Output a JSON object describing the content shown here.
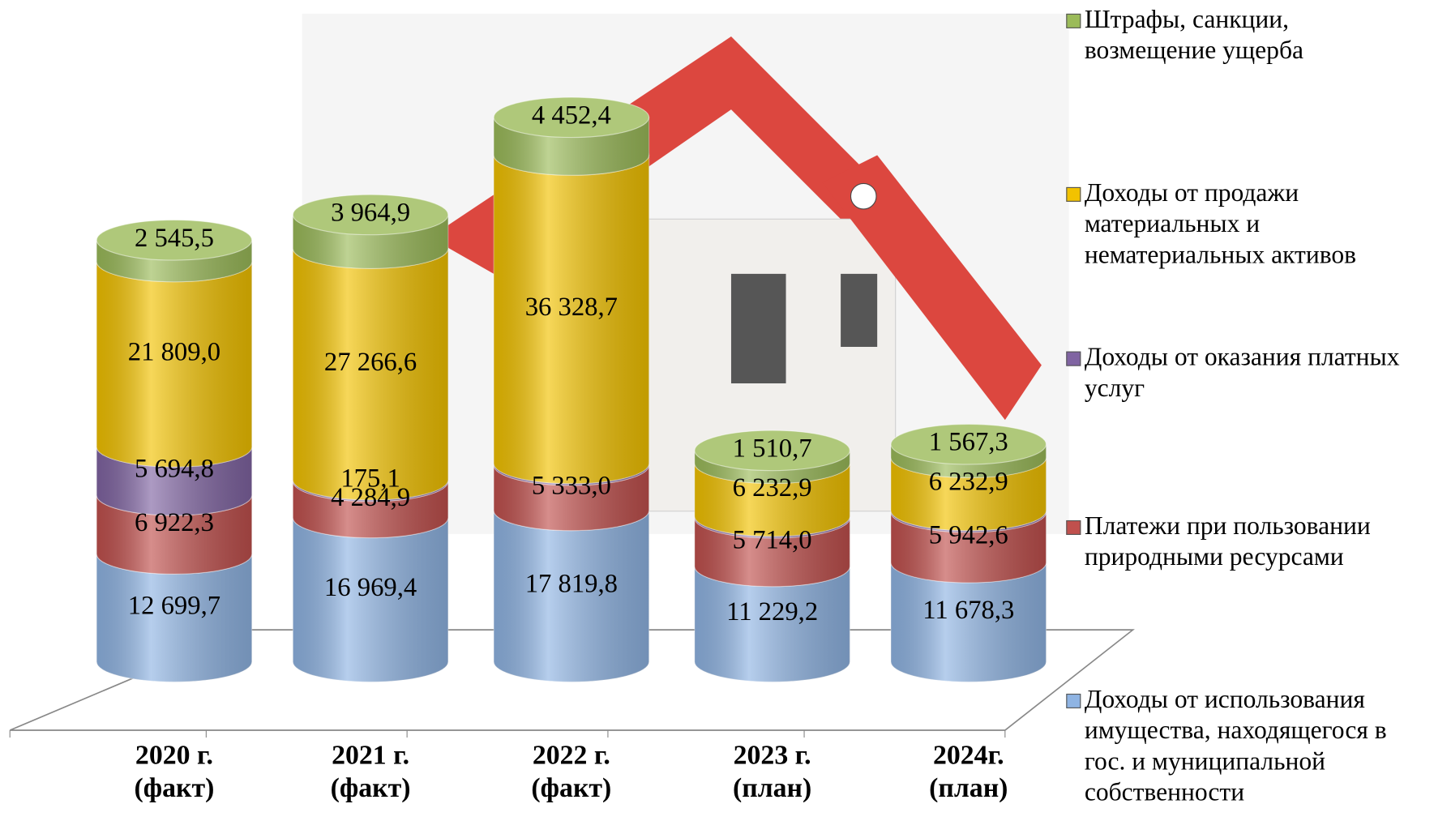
{
  "chart_data": {
    "type": "bar3d-stacked",
    "categories": [
      "2020 г. (факт)",
      "2021 г. (факт)",
      "2022 г. (факт)",
      "2023 г. (план)",
      "2024г. (план)"
    ],
    "series": [
      {
        "name": "Доходы от использования имущества, находящегося в гос. и муниципальной собственности",
        "color": "#8fb4e3",
        "values": [
          12699.7,
          16969.4,
          17819.8,
          11229.2,
          11678.3
        ],
        "value_labels": [
          "12 699,7",
          "16 969,4",
          "17 819,8",
          "11 229,2",
          "11 678,3"
        ]
      },
      {
        "name": "Платежи при пользовании природными ресурсами",
        "color": "#c0504d",
        "values": [
          6922.3,
          4284.9,
          5333.0,
          5714.0,
          5942.6
        ],
        "value_labels": [
          "6 922,3",
          "4 284,9",
          "5 333,0",
          "5 714,0",
          "5 942,6"
        ]
      },
      {
        "name": "Доходы от оказания платных услуг",
        "color": "#8064a2",
        "values": [
          5694.8,
          175.1,
          200,
          200,
          200
        ],
        "value_labels": [
          "5 694,8",
          "175,1",
          null,
          null,
          null
        ]
      },
      {
        "name": "Доходы от продажи материальных и нематериальных активов",
        "color": "#f2c200",
        "values": [
          21809.0,
          27266.6,
          36328.7,
          6232.9,
          6232.9
        ],
        "value_labels": [
          "21 809,0",
          "27 266,6",
          "36 328,7",
          "6 232,9",
          "6 232,9"
        ]
      },
      {
        "name": "Штрафы, санкции, возмещение ущерба",
        "color": "#9bbb59",
        "values": [
          2545.5,
          3964.9,
          4452.4,
          1510.7,
          1567.3
        ],
        "value_labels": [
          "2 545,5",
          "3 964,9",
          "4 452,4",
          "1 510,7",
          "1 567,3"
        ]
      }
    ],
    "legend": "right"
  }
}
